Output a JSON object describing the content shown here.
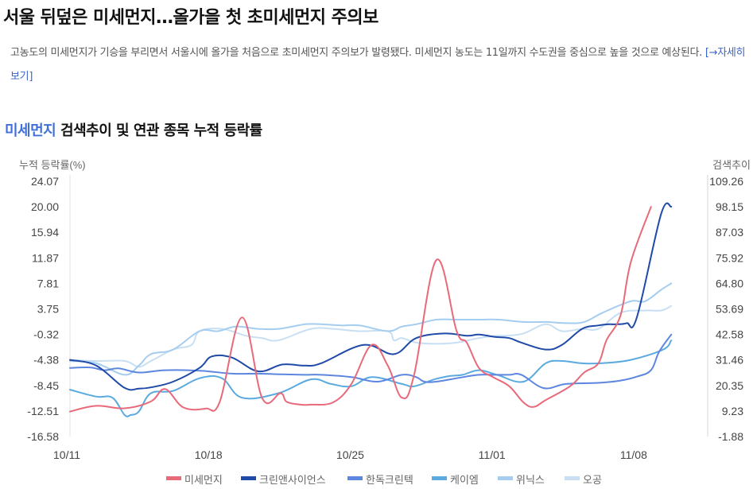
{
  "article": {
    "headline": "서울 뒤덮은 미세먼지…올가을 첫 초미세먼지 주의보",
    "summary": "고농도의 미세먼지가 기승을 부리면서 서울시에 올가을 처음으로 초미세먼지 주의보가 발령됐다. 미세먼지 농도는 11일까지 수도권을 중심으로 높을 것으로 예상된다.",
    "more_link": "[→자세히보기]"
  },
  "section": {
    "title_highlight": "미세먼지",
    "title_rest": " 검색추이 및 연관 종목 누적 등락률"
  },
  "chart_data": {
    "type": "line",
    "left_axis_label": "누적 등락률(%)",
    "right_axis_label": "검색추이",
    "left_ticks": [
      "24.07",
      "20.00",
      "15.94",
      "11.87",
      "7.81",
      "3.75",
      "-0.32",
      "-4.38",
      "-8.45",
      "-12.51",
      "-16.58"
    ],
    "right_ticks": [
      "109.26",
      "98.15",
      "87.03",
      "75.92",
      "64.80",
      "53.69",
      "42.58",
      "31.46",
      "20.35",
      "9.23",
      "-1.88"
    ],
    "left_range": [
      -16.58,
      24.07
    ],
    "right_range": [
      -1.88,
      109.26
    ],
    "x_tick_labels": [
      "10/11",
      "10/18",
      "10/25",
      "11/01",
      "11/08"
    ],
    "x_tick_days": [
      0,
      7,
      14,
      21,
      28
    ],
    "x_range_days": [
      0,
      31.5
    ],
    "grid": false,
    "legend_position": "bottom",
    "series": [
      {
        "name": "미세먼지",
        "axis": "right",
        "color": "#e86a7a",
        "x": [
          0,
          1.3,
          2.7,
          4,
          4.7,
          5.6,
          6.7,
          7.4,
          8.5,
          9.5,
          10.4,
          10.7,
          11.4,
          11.9,
          13,
          13.9,
          14.9,
          15.7,
          16.4,
          17,
          18.1,
          19.1,
          19.6,
          20.2,
          20.9,
          21.7,
          22.4,
          22.9,
          23.5,
          24.7,
          25.4,
          26.1,
          26.5,
          27.2,
          27.7,
          28.7
        ],
        "y": [
          9.0,
          11.5,
          10.4,
          13.4,
          18.8,
          10.8,
          10.3,
          13.3,
          50.0,
          14.7,
          17.0,
          13.3,
          12.0,
          12.0,
          13.0,
          21.0,
          38.0,
          29.0,
          15.0,
          25.0,
          75.0,
          44.0,
          39.0,
          28.0,
          24.0,
          20.0,
          13.0,
          11.0,
          14.0,
          20.0,
          26.0,
          30.0,
          40.0,
          51.0,
          74.0,
          98.1
        ]
      },
      {
        "name": "크린앤사이언스",
        "axis": "right",
        "color": "#1f4aa8",
        "x": [
          0,
          1.3,
          2.7,
          3.4,
          4,
          5.1,
          6.4,
          7,
          8,
          9.3,
          10.5,
          11.6,
          12.4,
          14.5,
          16,
          17.1,
          18.5,
          19.6,
          20.2,
          21,
          21.7,
          22.3,
          23.5,
          24.3,
          25.3,
          26.1,
          26.6,
          27,
          27.5,
          28,
          29.2,
          29.7
        ],
        "y": [
          31.5,
          29.0,
          19.3,
          19.0,
          19.5,
          22.0,
          28.0,
          33.0,
          32.5,
          26.5,
          29.5,
          29.0,
          30.0,
          38.0,
          34.0,
          41.0,
          43.0,
          42.0,
          42.5,
          41.5,
          41.0,
          39.0,
          36.0,
          38.0,
          45.0,
          46.5,
          47.0,
          47.0,
          47.5,
          50.0,
          95.0,
          98.2
        ]
      },
      {
        "name": "한독크린텍",
        "axis": "right",
        "color": "#5d86e0",
        "x": [
          0,
          1,
          1.7,
          2.4,
          3.4,
          4.7,
          6.4,
          8,
          9.3,
          10.5,
          11.6,
          12.4,
          13.9,
          15.2,
          16.4,
          17.1,
          17.5,
          18.1,
          19.1,
          20.2,
          21,
          21.7,
          22.3,
          23.4,
          24.5,
          26.1,
          27.2,
          28,
          28.7,
          29.1,
          29.7
        ],
        "y": [
          28.0,
          28.2,
          27.0,
          27.8,
          26.0,
          27.0,
          26.8,
          25.5,
          25.5,
          25.2,
          25.0,
          25.0,
          24.0,
          22.0,
          25.0,
          24.0,
          22.0,
          22.0,
          23.5,
          25.0,
          25.0,
          25.0,
          25.0,
          19.2,
          21.0,
          21.5,
          22.5,
          24.2,
          27.0,
          35.0,
          42.5
        ]
      },
      {
        "name": "케이엠",
        "axis": "right",
        "color": "#5aaae0",
        "x": [
          0,
          1.3,
          2.1,
          2.7,
          3,
          3.4,
          4,
          5.1,
          6.4,
          7.5,
          8.5,
          10.3,
          11.9,
          12.9,
          13.9,
          14.9,
          16.4,
          17,
          18,
          18.8,
          19.4,
          20.2,
          21.1,
          22.4,
          23.5,
          24.3,
          25.3,
          26.2,
          27.7,
          29.3,
          29.7
        ],
        "y": [
          18.5,
          15.5,
          15.0,
          7.5,
          7.5,
          9.0,
          17.0,
          18.0,
          23.5,
          23.5,
          15.0,
          17.0,
          23.0,
          21.0,
          20.0,
          24.0,
          21.0,
          20.0,
          23.0,
          24.5,
          25.0,
          27.0,
          25.0,
          22.0,
          30.0,
          31.0,
          30.0,
          30.0,
          31.5,
          36.0,
          40.0
        ]
      },
      {
        "name": "위닉스",
        "axis": "right",
        "color": "#a4cdf0",
        "x": [
          0,
          1.3,
          2.7,
          3.4,
          4,
          5.1,
          6.4,
          7.3,
          8.2,
          9.3,
          10.3,
          11.6,
          12.4,
          13.4,
          14.3,
          15.7,
          16.4,
          17.1,
          18.1,
          19.1,
          20.2,
          21.2,
          22.4,
          23.5,
          24.5,
          25.4,
          26.3,
          27.7,
          28.4,
          29.2,
          29.7
        ],
        "y": [
          31.0,
          30.0,
          25.0,
          29.0,
          34.0,
          36.0,
          44.0,
          44.0,
          46.0,
          45.0,
          45.0,
          47.0,
          47.0,
          46.5,
          46.5,
          44.0,
          46.0,
          47.0,
          49.0,
          49.0,
          49.0,
          49.0,
          48.0,
          48.0,
          47.5,
          48.0,
          52.0,
          57.0,
          57.0,
          62.0,
          64.8
        ]
      },
      {
        "name": "오공",
        "axis": "right",
        "color": "#c8dff3",
        "x": [
          0,
          1.3,
          2.7,
          3.4,
          4,
          5.1,
          6,
          6.4,
          7.5,
          8.7,
          9.5,
          10.3,
          11.9,
          13,
          14.3,
          15.7,
          16,
          16.4,
          17.1,
          18.1,
          19.1,
          20.2,
          21.1,
          21.5,
          22.4,
          23.5,
          24.3,
          25.3,
          26.1,
          27.2,
          28.4,
          29.2,
          29.7
        ],
        "y": [
          31.5,
          31.0,
          31.0,
          28.5,
          31.0,
          36.0,
          38.0,
          44.0,
          45.0,
          42.0,
          41.0,
          40.0,
          45.0,
          45.0,
          44.0,
          44.0,
          40.0,
          41.0,
          39.0,
          38.5,
          39.0,
          41.0,
          42.0,
          42.0,
          43.0,
          47.0,
          44.0,
          45.0,
          45.0,
          52.0,
          53.0,
          53.0,
          55.0
        ]
      }
    ]
  }
}
